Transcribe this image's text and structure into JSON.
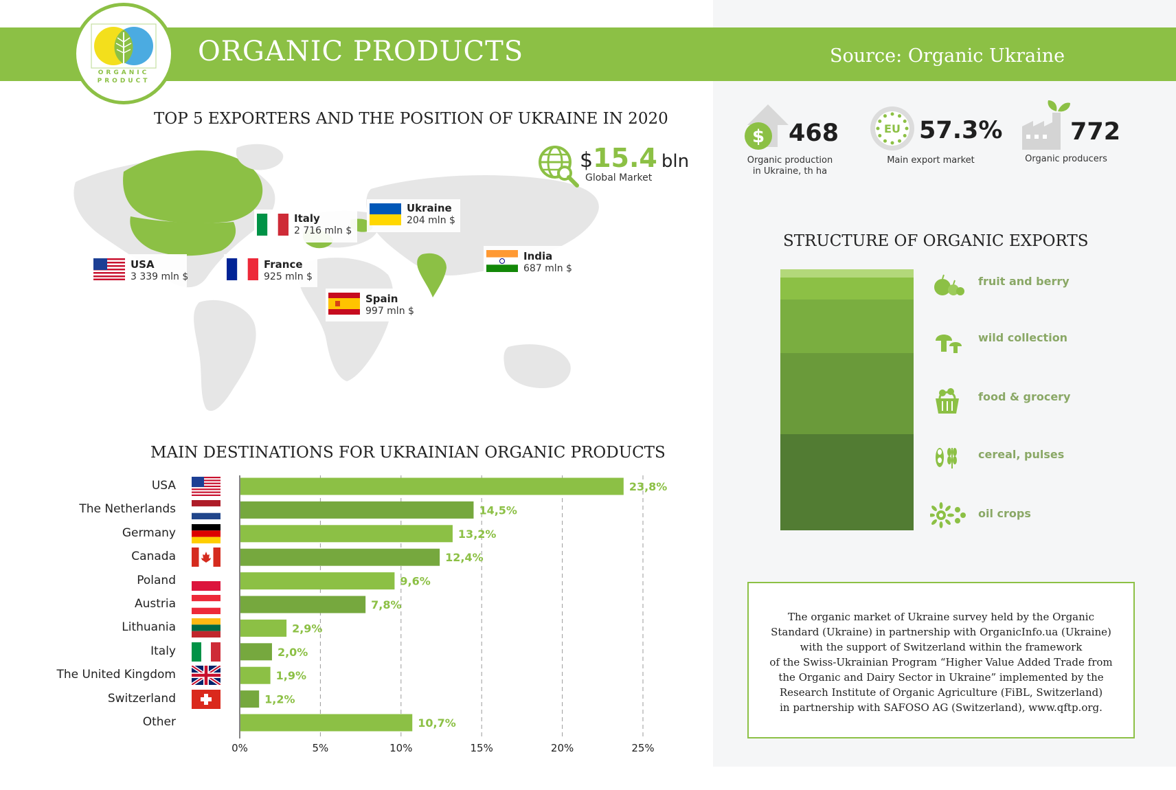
{
  "header": {
    "title": "ORGANIC PRODUCTS",
    "source": "Source: Organic Ukraine",
    "logo_top": "ORGANIC",
    "logo_bottom": "PRODUCT"
  },
  "colors": {
    "brand_green": "#8cc045",
    "bar_light": "#8cc045",
    "bar_dark": "#76a83e"
  },
  "map_section": {
    "title": "TOP 5 EXPORTERS AND THE POSITION OF UKRAINE IN 2020",
    "global_market_value": "15.4",
    "global_market_currency": "$",
    "global_market_unit": "bln",
    "global_market_label": "Global Market",
    "exporters": [
      {
        "country": "USA",
        "value": "3 339 mln $",
        "flag": "usa-flag"
      },
      {
        "country": "Italy",
        "value": "2 716 mln $",
        "flag": "italy-flag"
      },
      {
        "country": "France",
        "value": "925 mln $",
        "flag": "france-flag"
      },
      {
        "country": "Spain",
        "value": "997 mln $",
        "flag": "spain-flag"
      },
      {
        "country": "India",
        "value": "687 mln $",
        "flag": "india-flag"
      },
      {
        "country": "Ukraine",
        "value": "204 mln $",
        "flag": "ukraine-flag"
      }
    ]
  },
  "stats": [
    {
      "value": "468",
      "label": "Organic production in Ukraine, th ha",
      "icon": "dollar-arrow-icon"
    },
    {
      "value": "57.3%",
      "label": "Main export market",
      "icon": "eu-stars-icon",
      "badge": "EU"
    },
    {
      "value": "772",
      "label": "Organic producers",
      "icon": "factory-leaf-icon"
    }
  ],
  "structure": {
    "title": "STRUCTURE OF ORGANIC EXPORTS",
    "segments": [
      {
        "label": "fruit and berry",
        "icon": "fruit-icon",
        "color": "#8cc045"
      },
      {
        "label": "wild collection",
        "icon": "mushroom-icon",
        "color": "#80b443"
      },
      {
        "label": "food & grocery",
        "icon": "basket-icon",
        "color": "#6f9f3c"
      },
      {
        "label": "cereal, pulses",
        "icon": "wheat-icon",
        "color": "#5e8a34"
      },
      {
        "label": "oil crops",
        "icon": "sunflower-icon",
        "color": "#4f7a2e"
      }
    ]
  },
  "chart_data": {
    "type": "bar",
    "title": "MAIN DESTINATIONS FOR UKRAINIAN ORGANIC PRODUCTS",
    "orientation": "horizontal",
    "categories": [
      "USA",
      "The Netherlands",
      "Germany",
      "Canada",
      "Poland",
      "Austria",
      "Lithuania",
      "Italy",
      "The United Kingdom",
      "Switzerland",
      "Other"
    ],
    "values": [
      23.8,
      14.5,
      13.2,
      12.4,
      9.6,
      7.8,
      2.9,
      2.0,
      1.9,
      1.2,
      10.7
    ],
    "value_labels": [
      "23,8%",
      "14,5%",
      "13,2%",
      "12,4%",
      "9,6%",
      "7,8%",
      "2,9%",
      "2,0%",
      "1,9%",
      "1,2%",
      "10,7%"
    ],
    "xlim": [
      0,
      25
    ],
    "xticks": [
      "0%",
      "5%",
      "10%",
      "15%",
      "20%",
      "25%"
    ],
    "grid": true
  },
  "note": {
    "lines": [
      "The organic market of Ukraine survey held by the Organic",
      "Standard (Ukraine) in partnership with OrganicInfo.ua (Ukraine)",
      "with the support of Switzerland within the framework",
      "of the Swiss-Ukrainian Program “Higher Value Added Trade from",
      "the Organic and Dairy Sector in Ukraine” implemented by the",
      "Research Institute of Organic Agriculture (FiBL, Switzerland)",
      "in partnership with SAFOSO AG (Switzerland), www.qftp.org."
    ]
  }
}
